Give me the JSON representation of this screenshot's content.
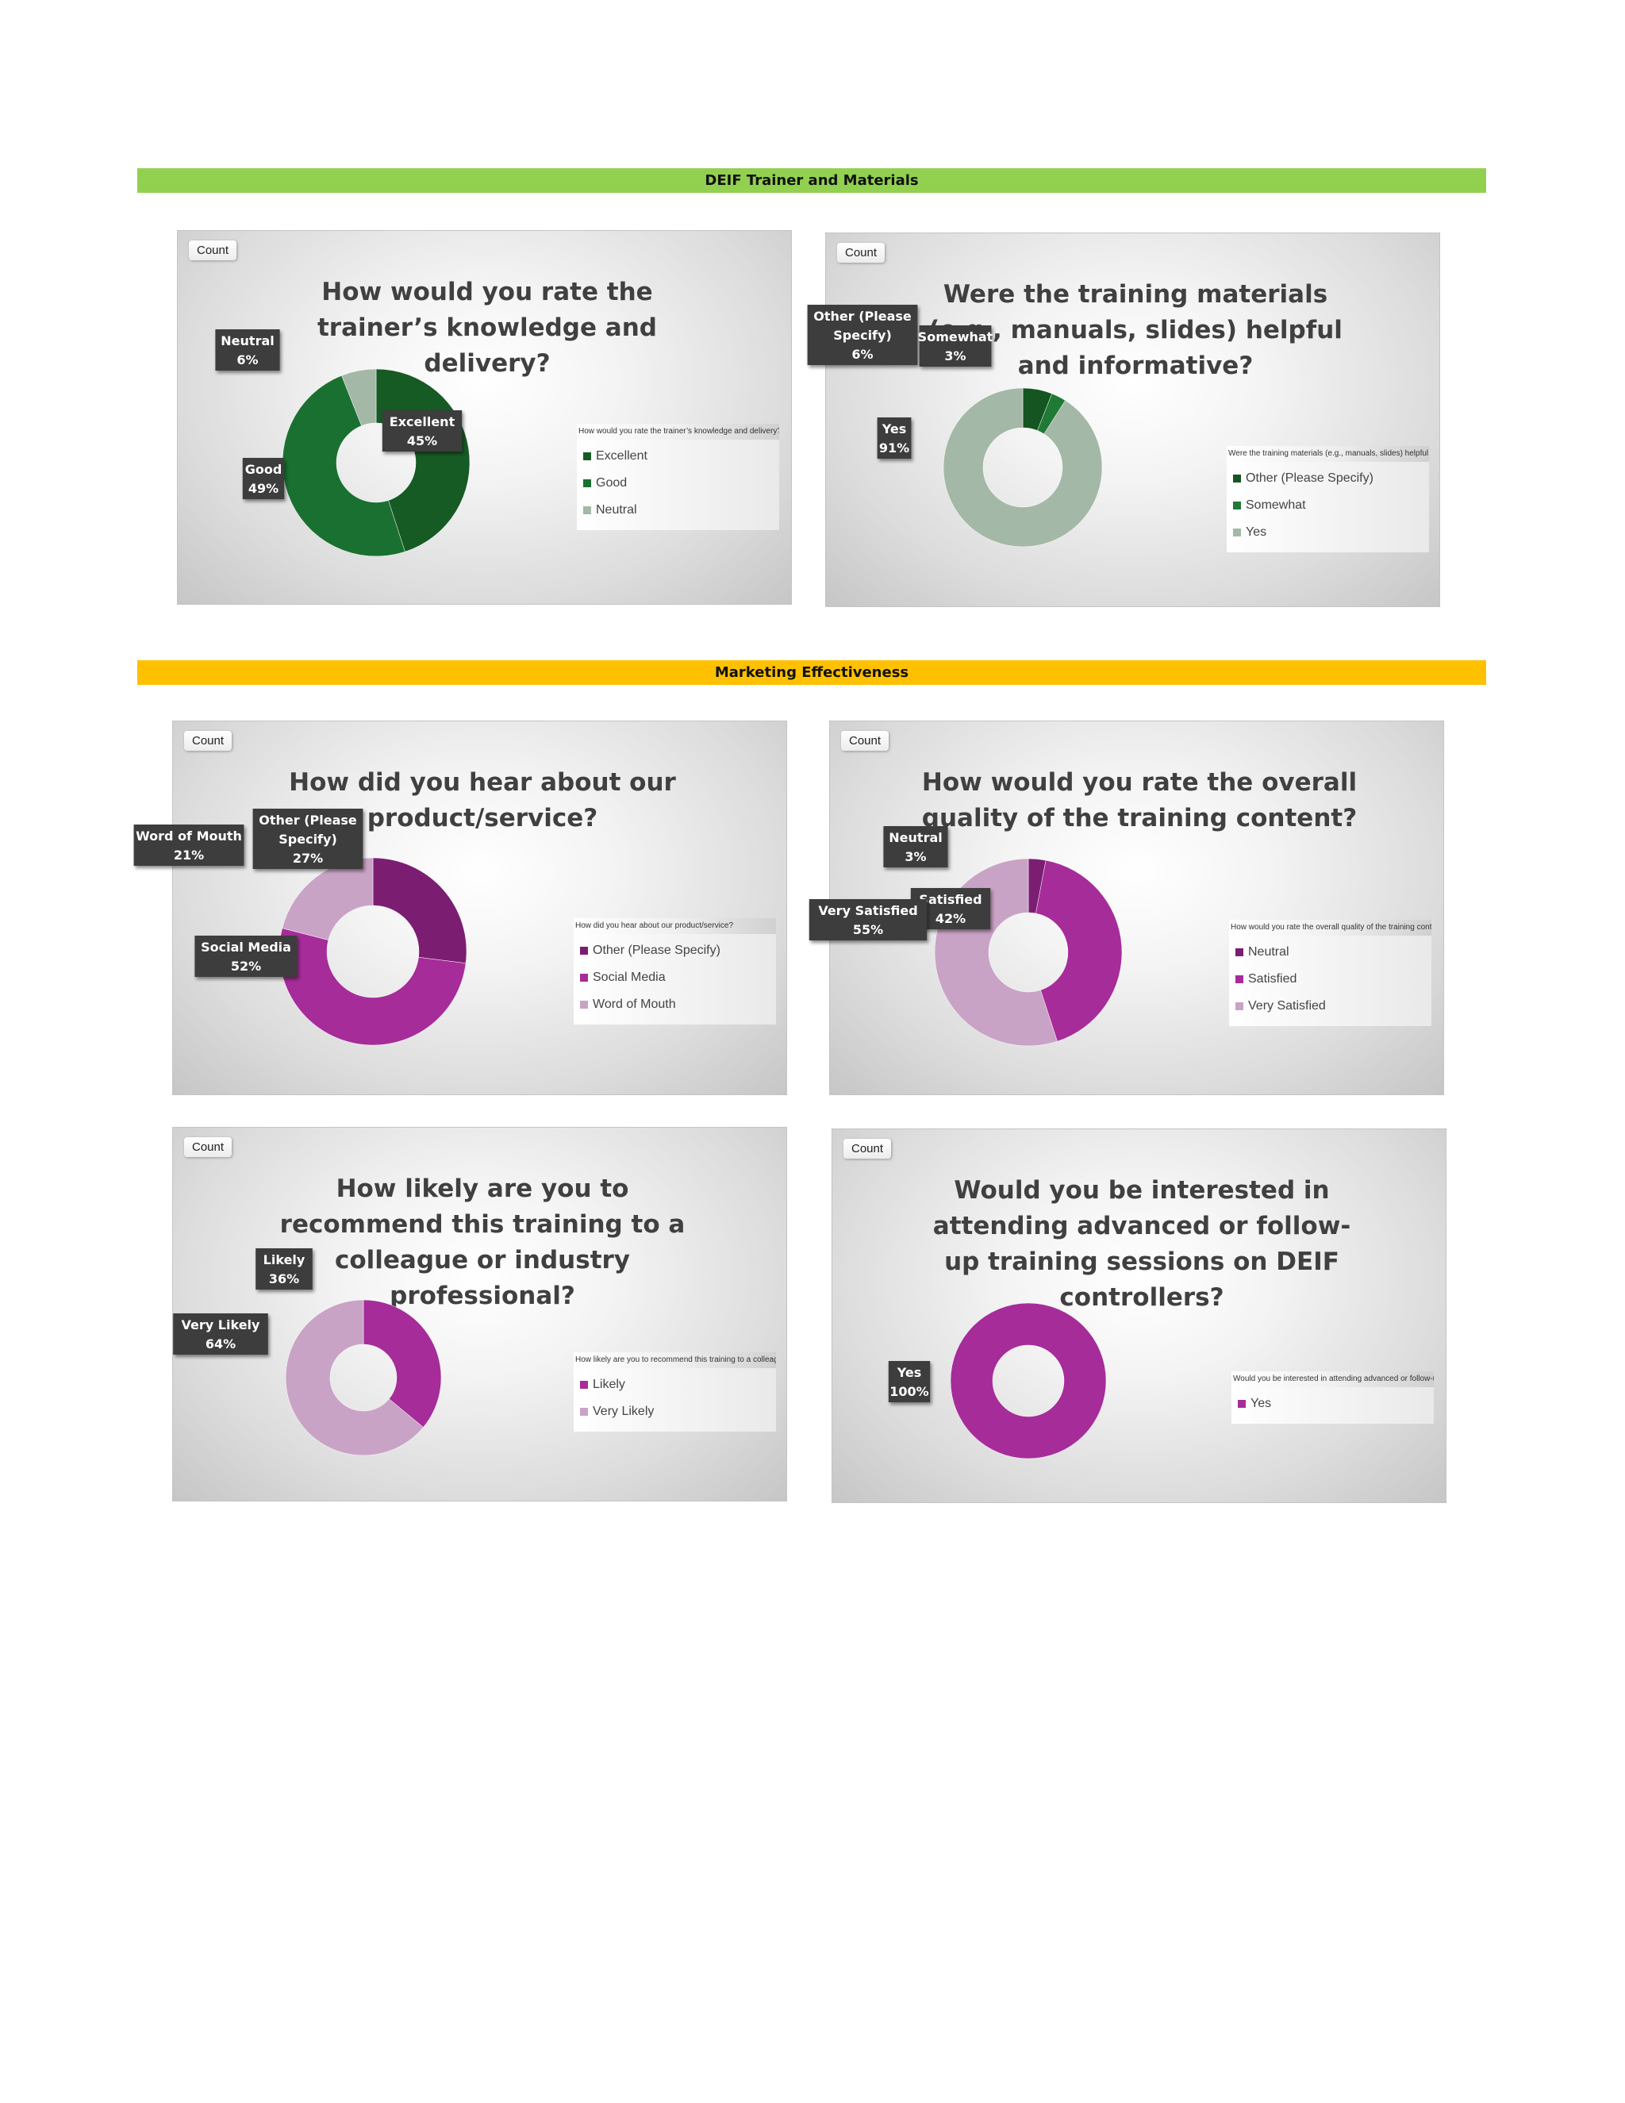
{
  "sections": [
    {
      "title": "DEIF Trainer and Materials",
      "color": "#92d050"
    },
    {
      "title": "Marketing Effectiveness",
      "color": "#ffc000"
    }
  ],
  "count_label": "Count",
  "chart_data": [
    {
      "type": "pie",
      "title": "How would you rate the trainer’s knowledge and delivery?",
      "legend_title": "How would you rate the trainer’s knowledge and delivery?",
      "categories": [
        "Excellent",
        "Good",
        "Neutral"
      ],
      "values": [
        45,
        49,
        6
      ],
      "colors": [
        "#165a24",
        "#1a7030",
        "#a3b8a6"
      ],
      "data_labels": [
        "Excellent\n45%",
        "Good\n49%",
        "Neutral\n6%"
      ],
      "legend_position": "right"
    },
    {
      "type": "pie",
      "title": "Were the training materials (e.g., manuals, slides) helpful and informative?",
      "legend_title": "Were the training materials (e.g., manuals, slides) helpful and informative?",
      "categories": [
        "Other (Please Specify)",
        "Somewhat",
        "Yes"
      ],
      "values": [
        6,
        3,
        91
      ],
      "colors": [
        "#145522",
        "#1e7a35",
        "#a3b8a6"
      ],
      "data_labels": [
        "Other (Please\nSpecify)\n6%",
        "Somewhat\n3%",
        "Yes\n91%"
      ],
      "legend_position": "right"
    },
    {
      "type": "pie",
      "title": "How did you hear about our product/service?",
      "legend_title": "How did you hear about our product/service?",
      "categories": [
        "Other (Please Specify)",
        "Social Media",
        "Word of Mouth"
      ],
      "values": [
        27,
        52,
        21
      ],
      "colors": [
        "#7b1e72",
        "#a62c9a",
        "#c9a3c6"
      ],
      "data_labels": [
        "Other (Please\nSpecify)\n27%",
        "Social Media\n52%",
        "Word of Mouth\n21%"
      ],
      "legend_position": "right"
    },
    {
      "type": "pie",
      "title": "How would you rate the overall quality of the training content?",
      "legend_title": "How would you rate the overall quality of the training content?",
      "categories": [
        "Neutral",
        "Satisfied",
        "Very Satisfied"
      ],
      "values": [
        3,
        42,
        55
      ],
      "colors": [
        "#7b1e72",
        "#a62c9a",
        "#c9a3c6"
      ],
      "data_labels": [
        "Neutral\n3%",
        "Satisfied\n42%",
        "Very Satisfied\n55%"
      ],
      "legend_position": "right"
    },
    {
      "type": "pie",
      "title": "How likely are you to recommend this training to a colleague or industry professional?",
      "legend_title": "How likely are you to recommend this training to a colleague or industry professional?",
      "categories": [
        "Likely",
        "Very Likely"
      ],
      "values": [
        36,
        64
      ],
      "colors": [
        "#a62c9a",
        "#c9a3c6"
      ],
      "data_labels": [
        "Likely\n36%",
        "Very Likely\n64%"
      ],
      "legend_position": "right"
    },
    {
      "type": "pie",
      "title": "Would you be interested in attending advanced or follow-up training sessions on DEIF controllers?",
      "legend_title": "Would you be interested in attending advanced or follow-up training sessions on DEIF controllers?",
      "categories": [
        "Yes"
      ],
      "values": [
        100
      ],
      "colors": [
        "#a62c9a"
      ],
      "data_labels": [
        "Yes\n100%"
      ],
      "legend_position": "right"
    }
  ]
}
